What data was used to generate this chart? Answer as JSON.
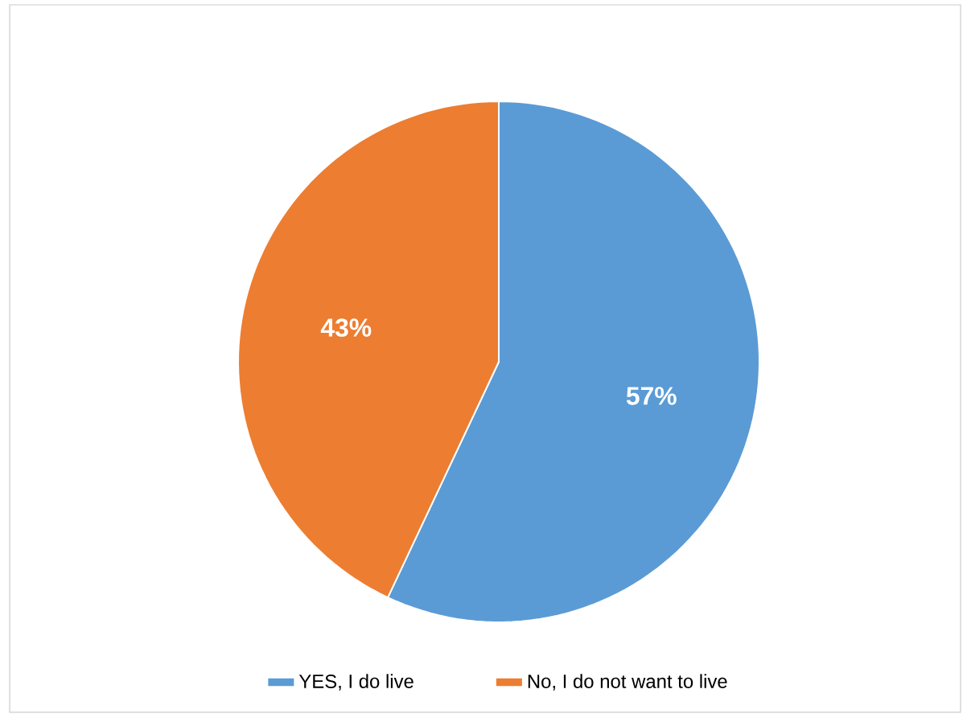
{
  "chart_data": {
    "type": "pie",
    "categories": [
      "YES, I do live",
      "No, I do not want to live"
    ],
    "values": [
      57,
      43
    ],
    "value_labels": [
      "57%",
      "43%"
    ],
    "colors": [
      "#5b9bd5",
      "#ed7d31"
    ],
    "legend": "bottom"
  }
}
